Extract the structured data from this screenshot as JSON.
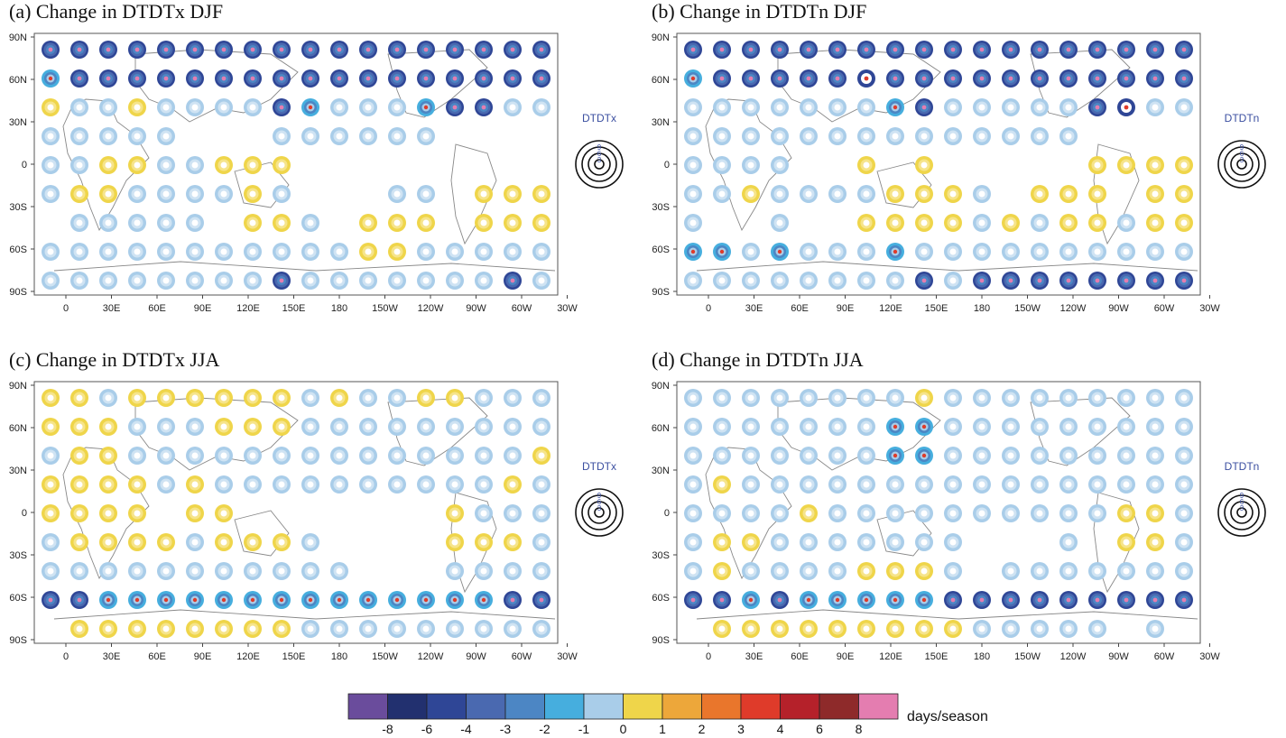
{
  "panels": [
    {
      "title": "(a) Change in DTDTx  DJF",
      "legend_var": "DTDTx"
    },
    {
      "title": "(b) Change in DTDTn  DJF",
      "legend_var": "DTDTn"
    },
    {
      "title": "(c) Change in DTDTx  JJA",
      "legend_var": "DTDTx"
    },
    {
      "title": "(d) Change in DTDTn  JJA",
      "legend_var": "DTDTn"
    }
  ],
  "size_legend_values": [
    "9",
    "6",
    "3"
  ],
  "lat_ticks": [
    "90N",
    "60N",
    "30N",
    "0",
    "30S",
    "60S",
    "90S"
  ],
  "lon_ticks": [
    "0",
    "30E",
    "60E",
    "90E",
    "120E",
    "150E",
    "180",
    "150W",
    "120W",
    "90W",
    "60W",
    "30W"
  ],
  "chart_data": {
    "type": "bubble-map",
    "description_of_encoding": "concentric rings per grid cell; ring colour = change category, ring size = magnitude",
    "colorbar": {
      "labels": [
        "-8",
        "-6",
        "-4",
        "-3",
        "-2",
        "-1",
        "0",
        "1",
        "2",
        "3",
        "4",
        "6",
        "8"
      ],
      "colors": [
        "#6a4c9c",
        "#22306f",
        "#2f4696",
        "#4a69b0",
        "#4c86c4",
        "#46aede",
        "#a9cde9",
        "#efd54a",
        "#eda73a",
        "#e9762c",
        "#df3b2a",
        "#b5212a",
        "#8e2a2a",
        "#e47db0"
      ],
      "unit": "days/season"
    },
    "lat_rows": [
      80,
      60,
      40,
      20,
      0,
      -20,
      -40,
      -60,
      -80
    ],
    "lon_cols": [
      -10,
      10,
      30,
      50,
      70,
      90,
      110,
      130,
      150,
      170,
      190,
      210,
      230,
      250,
      270,
      290,
      310,
      330
    ],
    "maps": [
      {
        "panel": "a",
        "rows": [
          "BBBBBBBBBBBBBBBBBB",
          "CBBBBBBBBBBBBBBBBB",
          "yLLyLLLLBCLLLCBBLL",
          "LLLLL...LLLLLL....",
          "LLyyLLyyy.........",
          "LyyLLLLyL...LL.yyy",
          ".LLLLL.yyL.yyy.yyy",
          "LLLLLLLLLLLyyLLLLL",
          "LLLLLLLLBLLLLLLLBL"
        ]
      },
      {
        "panel": "b",
        "rows": [
          "BBBBBBBBBBBBBBBBBB",
          "CBBBBBWBBBBBBBBBBB",
          "LLLLLLLCBLLLLLBWLL",
          "LLLLLLLLLLLLLL....",
          "LLLL..y.y.....yyyy",
          "LLyLLLLyyyL.yyy.yy",
          "L..L..yyyyLyLyyLyy",
          "CCLCLLLCLLLLLLLLLL",
          "LLLLLLLLBLBBBBBBBB"
        ]
      },
      {
        "panel": "c",
        "rows": [
          "yyLyyyyyyLyLLyyLLL",
          "yyyLLLyyyLLLLLLLLL",
          "LyyLLLLLLLLLLLLLLy",
          "yyyyLyLLLLLLLLLLyL",
          "yyyy.yy.......yLLL",
          "LyyyyLyyyL....yyyL",
          "LLLLLLLLLLL...LLLL",
          "BBCCCCCCCCCCCCCCBB",
          ".yyyyyyyyLLLLLLLLL"
        ]
      },
      {
        "panel": "d",
        "rows": [
          "LLLLLLLLyLLLLLLLLL",
          "LLLLLLLCCLLLLLLLLL",
          "LLLLLLLCCLLLLLLLLL",
          "LyLLLLLLLLLLLLLLLL",
          "LLLLyLLLLLLLLLLyyL",
          "LyyLLLLLLL...L.yyL",
          "LyLLLLyyyL.LLLLLLL",
          "BBCBCCCCCBBBBBBBBB",
          ".yyyyyyyyyLLLLL.L."
        ]
      }
    ]
  }
}
